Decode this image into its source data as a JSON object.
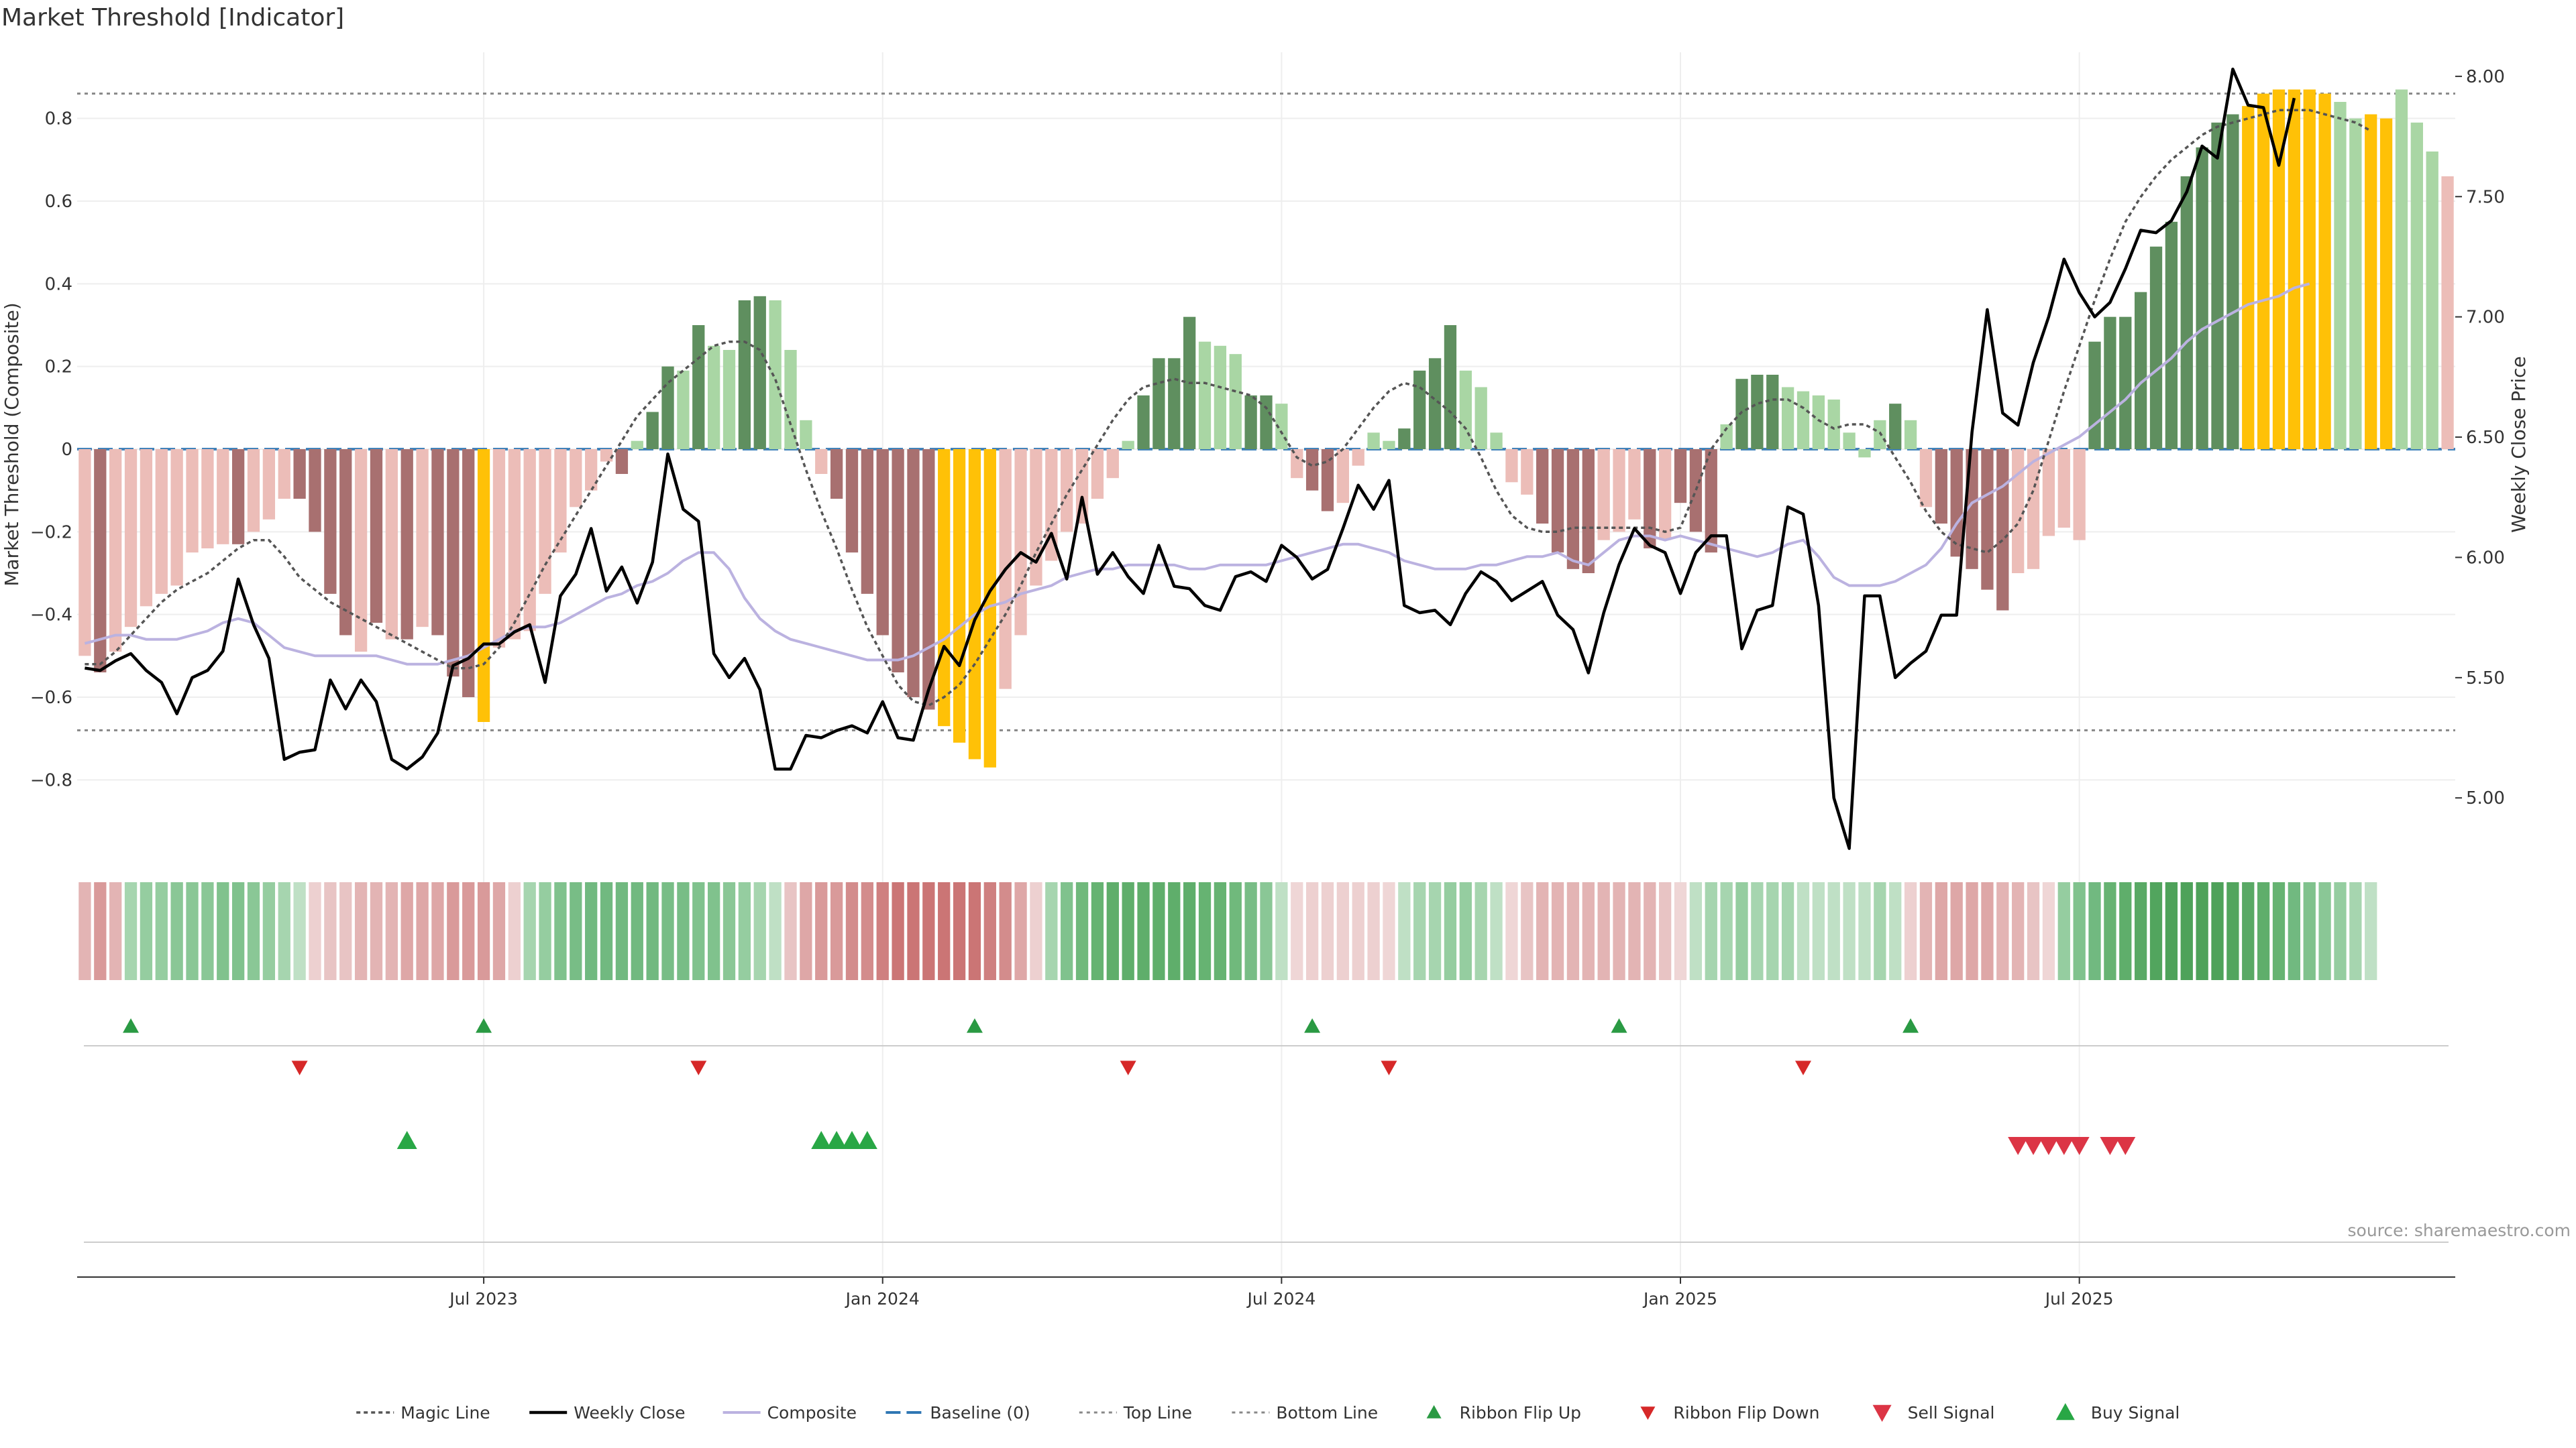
{
  "title": "Market Threshold [Indicator]",
  "source": "source: sharemaestro.com",
  "colors": {
    "bar_up_strong": "#5f8f5f",
    "bar_up_weak": "#a9d6a4",
    "bar_down_strong": "#a87070",
    "bar_down_weak": "#ecbdb8",
    "bar_extreme": "#ffc107",
    "weekly_close": "#000000",
    "magic_line": "#555555",
    "composite": "#bbb2e0",
    "baseline": "#2f77b4",
    "threshold_lines": "#888888",
    "ribbon_flip_up": "#2a9a43",
    "ribbon_flip_down": "#d62828",
    "sell_signal": "#dc3545",
    "buy_signal": "#28a745",
    "grid": "#eeeeee"
  },
  "chart_data": {
    "type": "bar",
    "title": "Market Threshold [Indicator]",
    "ylabel": "Market Threshold (Composite)",
    "y2label": "Weekly Close Price",
    "ylim": [
      -0.96,
      0.96
    ],
    "y2lim": [
      4.8,
      8.1
    ],
    "yticks": [
      -0.8,
      -0.6,
      -0.4,
      -0.2,
      0,
      0.2,
      0.4,
      0.6,
      0.8
    ],
    "y2ticks": [
      5.0,
      5.5,
      6.0,
      6.5,
      7.0,
      7.5,
      8.0
    ],
    "y2ticklabels": [
      "5.00",
      "5.50",
      "6.00",
      "6.50",
      "7.00",
      "7.50",
      "8.00"
    ],
    "x_start": "2023-01-06",
    "x_interval": "weekly",
    "x_tick_labels": [
      "Jul 2023",
      "Jan 2024",
      "Jul 2024",
      "Jan 2025",
      "Jul 2025"
    ],
    "x_tick_indices": [
      26,
      52,
      78,
      104,
      130
    ],
    "grid": true,
    "legend_position": "bottom",
    "top_line": 0.86,
    "bottom_line": -0.68,
    "baseline": 0,
    "composite_bars": [
      -0.5,
      -0.54,
      -0.49,
      -0.43,
      -0.38,
      -0.35,
      -0.33,
      -0.25,
      -0.24,
      -0.23,
      -0.23,
      -0.2,
      -0.17,
      -0.12,
      -0.12,
      -0.2,
      -0.35,
      -0.45,
      -0.49,
      -0.42,
      -0.46,
      -0.46,
      -0.43,
      -0.45,
      -0.55,
      -0.6,
      -0.66,
      -0.48,
      -0.46,
      -0.44,
      -0.35,
      -0.25,
      -0.14,
      -0.1,
      -0.03,
      -0.06,
      0.02,
      0.09,
      0.2,
      0.19,
      0.3,
      0.25,
      0.24,
      0.36,
      0.37,
      0.36,
      0.24,
      0.07,
      -0.06,
      -0.12,
      -0.25,
      -0.35,
      -0.45,
      -0.54,
      -0.6,
      -0.63,
      -0.67,
      -0.71,
      -0.75,
      -0.77,
      -0.58,
      -0.45,
      -0.33,
      -0.27,
      -0.2,
      -0.18,
      -0.12,
      -0.07,
      0.02,
      0.13,
      0.22,
      0.22,
      0.32,
      0.26,
      0.25,
      0.23,
      0.13,
      0.13,
      0.11,
      -0.07,
      -0.1,
      -0.15,
      -0.13,
      -0.04,
      0.04,
      0.02,
      0.05,
      0.19,
      0.22,
      0.3,
      0.19,
      0.15,
      0.04,
      -0.08,
      -0.11,
      -0.18,
      -0.25,
      -0.29,
      -0.3,
      -0.22,
      -0.2,
      -0.17,
      -0.24,
      -0.22,
      -0.13,
      -0.2,
      -0.25,
      0.06,
      0.17,
      0.18,
      0.18,
      0.15,
      0.14,
      0.13,
      0.12,
      0.04,
      -0.02,
      0.07,
      0.11,
      0.07,
      -0.14,
      -0.18,
      -0.26,
      -0.29,
      -0.34,
      -0.39,
      -0.3,
      -0.29,
      -0.21,
      -0.19,
      -0.22,
      0.26,
      0.32,
      0.32,
      0.38,
      0.49,
      0.55,
      0.66,
      0.73,
      0.79,
      0.81,
      0.83,
      0.86,
      0.87,
      0.87,
      0.87,
      0.86,
      0.84,
      0.8,
      0.81,
      0.8,
      0.87,
      0.79,
      0.72,
      0.66
    ],
    "bar_classes": [
      "dw",
      "ds",
      "dw",
      "dw",
      "dw",
      "dw",
      "dw",
      "dw",
      "dw",
      "dw",
      "ds",
      "dw",
      "dw",
      "dw",
      "ds",
      "ds",
      "ds",
      "ds",
      "dw",
      "ds",
      "dw",
      "ds",
      "dw",
      "ds",
      "ds",
      "ds",
      "ex",
      "dw",
      "dw",
      "dw",
      "dw",
      "dw",
      "dw",
      "dw",
      "dw",
      "ds",
      "uw",
      "us",
      "us",
      "uw",
      "us",
      "uw",
      "uw",
      "us",
      "us",
      "uw",
      "uw",
      "uw",
      "dw",
      "ds",
      "ds",
      "ds",
      "ds",
      "ds",
      "ds",
      "ds",
      "ex",
      "ex",
      "ex",
      "ex",
      "dw",
      "dw",
      "dw",
      "dw",
      "dw",
      "dw",
      "dw",
      "dw",
      "uw",
      "us",
      "us",
      "us",
      "us",
      "uw",
      "uw",
      "uw",
      "us",
      "us",
      "uw",
      "dw",
      "ds",
      "ds",
      "dw",
      "dw",
      "uw",
      "uw",
      "us",
      "us",
      "us",
      "us",
      "uw",
      "uw",
      "uw",
      "dw",
      "dw",
      "ds",
      "ds",
      "ds",
      "ds",
      "dw",
      "dw",
      "dw",
      "ds",
      "dw",
      "ds",
      "ds",
      "ds",
      "uw",
      "us",
      "us",
      "us",
      "uw",
      "uw",
      "uw",
      "uw",
      "uw",
      "uw",
      "uw",
      "us",
      "uw",
      "dw",
      "ds",
      "ds",
      "ds",
      "ds",
      "ds",
      "dw",
      "dw",
      "dw",
      "dw",
      "dw",
      "us",
      "us",
      "us",
      "us",
      "us",
      "us",
      "us",
      "us",
      "us",
      "us",
      "ex",
      "ex",
      "ex",
      "ex",
      "ex",
      "ex",
      "uw",
      "uw",
      "ex",
      "ex",
      "uw",
      "uw",
      "uw"
    ],
    "weekly_close": [
      5.54,
      5.53,
      5.57,
      5.6,
      5.53,
      5.48,
      5.35,
      5.5,
      5.53,
      5.61,
      5.91,
      5.72,
      5.58,
      5.16,
      5.19,
      5.2,
      5.49,
      5.37,
      5.49,
      5.4,
      5.16,
      5.12,
      5.17,
      5.27,
      5.55,
      5.58,
      5.64,
      5.64,
      5.69,
      5.72,
      5.48,
      5.84,
      5.93,
      6.12,
      5.86,
      5.96,
      5.81,
      5.98,
      6.43,
      6.2,
      6.15,
      5.6,
      5.5,
      5.58,
      5.45,
      5.12,
      5.12,
      5.26,
      5.25,
      5.28,
      5.3,
      5.27,
      5.4,
      5.25,
      5.24,
      5.45,
      5.63,
      5.55,
      5.74,
      5.86,
      5.95,
      6.02,
      5.98,
      6.1,
      5.91,
      6.25,
      5.93,
      6.02,
      5.92,
      5.85,
      6.05,
      5.88,
      5.87,
      5.8,
      5.78,
      5.92,
      5.94,
      5.9,
      6.05,
      6.0,
      5.91,
      5.95,
      6.12,
      6.3,
      6.2,
      6.32,
      5.8,
      5.77,
      5.78,
      5.72,
      5.85,
      5.94,
      5.9,
      5.82,
      5.86,
      5.9,
      5.76,
      5.7,
      5.52,
      5.77,
      5.97,
      6.12,
      6.05,
      6.02,
      5.85,
      6.02,
      6.09,
      6.09,
      5.62,
      5.78,
      5.8,
      6.21,
      6.18,
      5.8,
      5.0,
      4.79,
      5.84,
      5.84,
      5.5,
      5.56,
      5.61,
      5.76,
      5.76,
      6.52,
      7.03,
      6.6,
      6.55,
      6.81,
      7.0,
      7.24,
      7.1,
      7.0,
      7.06,
      7.2,
      7.36,
      7.35,
      7.4,
      7.52,
      7.71,
      7.66,
      8.03,
      7.88,
      7.87,
      7.63,
      7.91
    ],
    "magic_line": [
      -0.52,
      -0.52,
      -0.49,
      -0.45,
      -0.41,
      -0.37,
      -0.34,
      -0.32,
      -0.3,
      -0.27,
      -0.24,
      -0.22,
      -0.22,
      -0.26,
      -0.31,
      -0.34,
      -0.37,
      -0.39,
      -0.41,
      -0.43,
      -0.45,
      -0.47,
      -0.49,
      -0.51,
      -0.53,
      -0.53,
      -0.52,
      -0.48,
      -0.42,
      -0.35,
      -0.28,
      -0.22,
      -0.16,
      -0.1,
      -0.04,
      0.02,
      0.08,
      0.12,
      0.16,
      0.19,
      0.22,
      0.25,
      0.26,
      0.26,
      0.24,
      0.17,
      0.06,
      -0.05,
      -0.15,
      -0.24,
      -0.34,
      -0.43,
      -0.5,
      -0.57,
      -0.61,
      -0.62,
      -0.6,
      -0.57,
      -0.52,
      -0.46,
      -0.4,
      -0.33,
      -0.25,
      -0.18,
      -0.11,
      -0.05,
      0.01,
      0.07,
      0.12,
      0.15,
      0.16,
      0.17,
      0.16,
      0.16,
      0.15,
      0.14,
      0.13,
      0.1,
      0.04,
      -0.02,
      -0.04,
      -0.03,
      0.0,
      0.05,
      0.1,
      0.14,
      0.16,
      0.15,
      0.12,
      0.09,
      0.05,
      -0.02,
      -0.1,
      -0.16,
      -0.19,
      -0.2,
      -0.2,
      -0.19,
      -0.19,
      -0.19,
      -0.19,
      -0.19,
      -0.19,
      -0.2,
      -0.19,
      -0.1,
      0.0,
      0.05,
      0.09,
      0.11,
      0.12,
      0.12,
      0.1,
      0.07,
      0.05,
      0.06,
      0.06,
      0.04,
      -0.02,
      -0.08,
      -0.15,
      -0.2,
      -0.23,
      -0.24,
      -0.25,
      -0.22,
      -0.18,
      -0.1,
      0.02,
      0.14,
      0.25,
      0.36,
      0.46,
      0.55,
      0.61,
      0.66,
      0.7,
      0.73,
      0.76,
      0.78,
      0.79,
      0.8,
      0.81,
      0.82,
      0.82,
      0.82,
      0.81,
      0.8,
      0.79,
      0.77
    ],
    "composite_line": [
      -0.47,
      -0.46,
      -0.45,
      -0.45,
      -0.46,
      -0.46,
      -0.46,
      -0.45,
      -0.44,
      -0.42,
      -0.41,
      -0.42,
      -0.45,
      -0.48,
      -0.49,
      -0.5,
      -0.5,
      -0.5,
      -0.5,
      -0.5,
      -0.51,
      -0.52,
      -0.52,
      -0.52,
      -0.51,
      -0.5,
      -0.48,
      -0.46,
      -0.44,
      -0.43,
      -0.43,
      -0.42,
      -0.4,
      -0.38,
      -0.36,
      -0.35,
      -0.33,
      -0.32,
      -0.3,
      -0.27,
      -0.25,
      -0.25,
      -0.29,
      -0.36,
      -0.41,
      -0.44,
      -0.46,
      -0.47,
      -0.48,
      -0.49,
      -0.5,
      -0.51,
      -0.51,
      -0.51,
      -0.5,
      -0.48,
      -0.46,
      -0.43,
      -0.4,
      -0.38,
      -0.37,
      -0.35,
      -0.34,
      -0.33,
      -0.31,
      -0.3,
      -0.29,
      -0.29,
      -0.28,
      -0.28,
      -0.28,
      -0.28,
      -0.29,
      -0.29,
      -0.28,
      -0.28,
      -0.28,
      -0.28,
      -0.27,
      -0.26,
      -0.25,
      -0.24,
      -0.23,
      -0.23,
      -0.24,
      -0.25,
      -0.27,
      -0.28,
      -0.29,
      -0.29,
      -0.29,
      -0.28,
      -0.28,
      -0.27,
      -0.26,
      -0.26,
      -0.25,
      -0.27,
      -0.28,
      -0.25,
      -0.22,
      -0.21,
      -0.21,
      -0.22,
      -0.21,
      -0.22,
      -0.23,
      -0.24,
      -0.25,
      -0.26,
      -0.25,
      -0.23,
      -0.22,
      -0.26,
      -0.31,
      -0.33,
      -0.33,
      -0.33,
      -0.32,
      -0.3,
      -0.28,
      -0.24,
      -0.18,
      -0.13,
      -0.11,
      -0.09,
      -0.06,
      -0.03,
      -0.01,
      0.01,
      0.03,
      0.06,
      0.09,
      0.12,
      0.16,
      0.19,
      0.22,
      0.26,
      0.29,
      0.31,
      0.33,
      0.35,
      0.36,
      0.37,
      0.39,
      0.4
    ],
    "ribbon_colors": [
      "#e3b4b4",
      "#d99a9a",
      "#e3b4b4",
      "#a6d5af",
      "#95cda0",
      "#95cda0",
      "#8ac796",
      "#8ac796",
      "#8ac796",
      "#80c28d",
      "#80c28d",
      "#8ac796",
      "#95cda0",
      "#a6d5af",
      "#bfe0c5",
      "#edd0d0",
      "#e8c4c4",
      "#e8c4c4",
      "#e3b4b4",
      "#e3b4b4",
      "#e3b4b4",
      "#dea7a7",
      "#dea7a7",
      "#dea7a7",
      "#d99a9a",
      "#d99a9a",
      "#d99a9a",
      "#dea7a7",
      "#edd0d0",
      "#a6d5af",
      "#95cda0",
      "#80c28d",
      "#78bd86",
      "#71b980",
      "#71b980",
      "#71b980",
      "#71b980",
      "#71b980",
      "#78bd86",
      "#78bd86",
      "#80c28d",
      "#80c28d",
      "#8ac796",
      "#95cda0",
      "#a6d5af",
      "#bfe0c5",
      "#e8c4c4",
      "#dea7a7",
      "#d99a9a",
      "#d99a9a",
      "#d38c8c",
      "#d38c8c",
      "#cf8080",
      "#cb7575",
      "#cb7575",
      "#cb7575",
      "#cb7575",
      "#cb7575",
      "#cb7575",
      "#cf8080",
      "#d38c8c",
      "#dea7a7",
      "#edd0d0",
      "#a6d5af",
      "#80c28d",
      "#70b97c",
      "#66b372",
      "#5fae6b",
      "#5fae6b",
      "#5fae6b",
      "#5fae6b",
      "#5fae6b",
      "#5fae6b",
      "#66b372",
      "#66b372",
      "#70b97c",
      "#78bd86",
      "#8ac796",
      "#bfe0c5",
      "#efd6d6",
      "#edd0d0",
      "#edd0d0",
      "#edd0d0",
      "#edd0d0",
      "#edd0d0",
      "#efd6d6",
      "#bfe0c5",
      "#a6d5af",
      "#a6d5af",
      "#95cda0",
      "#95cda0",
      "#a6d5af",
      "#bfe0c5",
      "#efd6d6",
      "#e8c4c4",
      "#e3b4b4",
      "#e3b4b4",
      "#e3b4b4",
      "#e3b4b4",
      "#e3b4b4",
      "#e3b4b4",
      "#e3b4b4",
      "#e3b4b4",
      "#e8c4c4",
      "#efd6d6",
      "#bfe0c5",
      "#a6d5af",
      "#a6d5af",
      "#95cda0",
      "#a6d5af",
      "#a6d5af",
      "#a6d5af",
      "#bfe0c5",
      "#bfe0c5",
      "#bfe0c5",
      "#bfe0c5",
      "#bfe0c5",
      "#a6d5af",
      "#bfe0c5",
      "#edd0d0",
      "#e3b4b4",
      "#dea7a7",
      "#dea7a7",
      "#dea7a7",
      "#dea7a7",
      "#e3b4b4",
      "#e3b4b4",
      "#e8c4c4",
      "#efd6d6",
      "#95cda0",
      "#80c28d",
      "#71b980",
      "#66b372",
      "#5fae6b",
      "#59a965",
      "#52a55e",
      "#4ea25a",
      "#4ea25a",
      "#4ea25a",
      "#4ea25a",
      "#52a55e",
      "#59a965",
      "#5fae6b",
      "#66b372",
      "#71b980",
      "#80c28d",
      "#8ac796",
      "#95cda0",
      "#a6d5af",
      "#bfe0c5"
    ],
    "ribbon_flip_up_at": [
      3,
      26,
      58,
      80,
      100,
      119
    ],
    "ribbon_flip_down_at": [
      14,
      40,
      68,
      85,
      112
    ],
    "buy_signal_at": [
      21,
      48,
      49,
      50,
      51
    ],
    "sell_signal_at": [
      126,
      127,
      128,
      129,
      130,
      132,
      133
    ],
    "legend": [
      "Magic Line",
      "Weekly Close",
      "Composite",
      "Baseline (0)",
      "Top Line",
      "Bottom Line",
      "Ribbon Flip Up",
      "Ribbon Flip Down",
      "Sell Signal",
      "Buy Signal"
    ]
  }
}
